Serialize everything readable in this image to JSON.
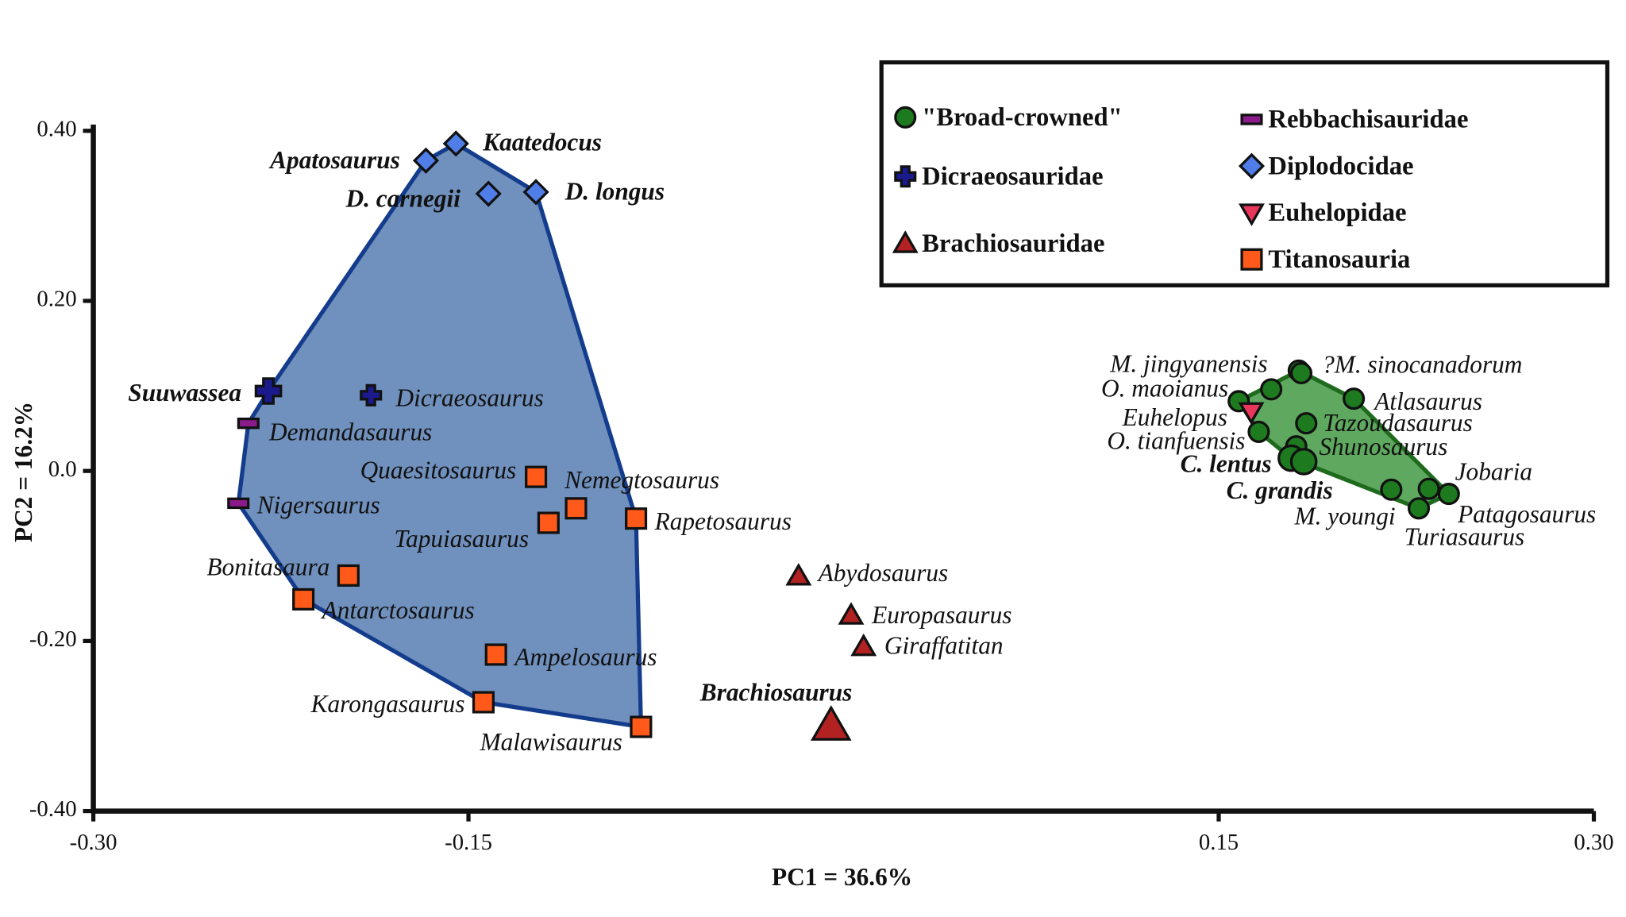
{
  "chart_data": {
    "type": "scatter",
    "xlabel": "PC1 = 36.6%",
    "ylabel": "PC2 = 16.2%",
    "xlim": [
      -0.3,
      0.3
    ],
    "ylim": [
      -0.4,
      0.4
    ],
    "xticks": [
      {
        "value": -0.3,
        "label": "-0.30"
      },
      {
        "value": -0.15,
        "label": "-0.15"
      },
      {
        "value": 0.15,
        "label": "0.15"
      },
      {
        "value": 0.3,
        "label": "0.30"
      }
    ],
    "yticks": [
      {
        "value": 0.4,
        "label": "0.40"
      },
      {
        "value": 0.2,
        "label": "0.20"
      },
      {
        "value": 0,
        "label": "0.0"
      },
      {
        "value": -0.2,
        "label": "-0.20"
      },
      {
        "value": -0.4,
        "label": "-0.40"
      }
    ],
    "legend": "upper right",
    "series": [
      {
        "name": "\"Broad-crowned\"",
        "color": "#1e7a1e",
        "marker": "circle",
        "x": [
          0.182,
          0.183,
          0.158,
          0.171,
          0.204,
          0.185,
          0.166,
          0.181,
          0.179,
          0.184,
          0.242,
          0.234,
          0.23,
          0.219
        ],
        "y": [
          0.118,
          0.115,
          0.082,
          0.096,
          0.085,
          0.056,
          0.046,
          0.029,
          0.015,
          0.011,
          -0.027,
          -0.021,
          -0.044,
          -0.022
        ],
        "labels": [
          "M. jingyanensis",
          "?M. sinocanadorum",
          "O. maoianus",
          null,
          "Atlasaurus",
          "Tazoudasaurus",
          "O. tianfuensis",
          "Shunosaurus",
          "C. lentus",
          "C. grandis",
          "Jobaria",
          "Patagosaurus",
          "Turiasaurus",
          "M. youngi"
        ]
      },
      {
        "name": "Dicraeosauridae",
        "color": "#1a1a8c",
        "marker": "cross",
        "x": [
          -0.23,
          -0.189
        ],
        "y": [
          0.094,
          0.089
        ],
        "labels": [
          "Suuwassea",
          "Dicraeosaurus"
        ]
      },
      {
        "name": "Brachiosauridae",
        "color": "#b22222",
        "marker": "triangle",
        "x": [
          -0.018,
          0.003,
          0.008,
          -0.005
        ],
        "y": [
          -0.124,
          -0.17,
          -0.207,
          -0.3
        ],
        "labels": [
          "Abydosaurus",
          "Europasaurus",
          "Giraffatitan",
          "Brachiosaurus"
        ]
      },
      {
        "name": "Rebbachisauridae",
        "color": "#8b1a8b",
        "marker": "bar",
        "x": [
          -0.238,
          -0.242
        ],
        "y": [
          0.056,
          -0.038
        ],
        "labels": [
          "Demandasaurus",
          "Nigersaurus"
        ]
      },
      {
        "name": "Diplodocidae",
        "color": "#4f7ee8",
        "marker": "diamond",
        "x": [
          -0.167,
          -0.155,
          -0.142,
          -0.123
        ],
        "y": [
          0.365,
          0.385,
          0.326,
          0.328
        ],
        "labels": [
          "Apatosaurus",
          "Kaatedocus",
          "D. carnegii",
          "D. longus"
        ]
      },
      {
        "name": "Euhelopidae",
        "color": "#e8375a",
        "marker": "down-triangle",
        "x": [
          0.163
        ],
        "y": [
          0.07
        ],
        "labels": [
          "Euhelopus"
        ]
      },
      {
        "name": "Titanosauria",
        "color": "#ff5a1a",
        "marker": "square",
        "x": [
          -0.123,
          -0.107,
          -0.118,
          -0.083,
          -0.198,
          -0.216,
          -0.139,
          -0.144,
          -0.081
        ],
        "y": [
          -0.007,
          -0.044,
          -0.061,
          -0.056,
          -0.123,
          -0.151,
          -0.216,
          -0.272,
          -0.301
        ],
        "labels": [
          "Quaesitosaurus",
          "Nemegtosaurus",
          "Tapuiasaurus",
          "Rapetosaurus",
          "Bonitasaura",
          "Antarctosaurus",
          "Ampelosaurus",
          "Karongasaurus",
          "Malawisaurus"
        ]
      }
    ]
  }
}
